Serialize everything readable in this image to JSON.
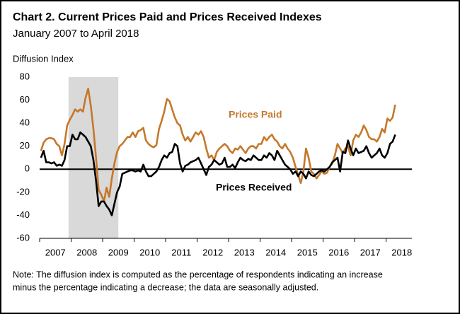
{
  "chart_data": {
    "type": "line",
    "title": "Chart 2. Current Prices Paid and Prices Received Indexes",
    "subtitle": "January 2007 to April 2018",
    "y_label": "Diffusion Index",
    "note": [
      "Note: The diffusion index is computed as the percentage of respondents indicating an increase",
      "minus the percentage indicating a decrease; the data are seasonally adjusted."
    ],
    "x": [
      2007.042,
      2007.125,
      2007.208,
      2007.292,
      2007.375,
      2007.458,
      2007.542,
      2007.625,
      2007.708,
      2007.792,
      2007.875,
      2007.958,
      2008.042,
      2008.125,
      2008.208,
      2008.292,
      2008.375,
      2008.458,
      2008.542,
      2008.625,
      2008.708,
      2008.792,
      2008.875,
      2008.958,
      2009.042,
      2009.125,
      2009.208,
      2009.292,
      2009.375,
      2009.458,
      2009.542,
      2009.625,
      2009.708,
      2009.792,
      2009.875,
      2009.958,
      2010.042,
      2010.125,
      2010.208,
      2010.292,
      2010.375,
      2010.458,
      2010.542,
      2010.625,
      2010.708,
      2010.792,
      2010.875,
      2010.958,
      2011.042,
      2011.125,
      2011.208,
      2011.292,
      2011.375,
      2011.458,
      2011.542,
      2011.625,
      2011.708,
      2011.792,
      2011.875,
      2011.958,
      2012.042,
      2012.125,
      2012.208,
      2012.292,
      2012.375,
      2012.458,
      2012.542,
      2012.625,
      2012.708,
      2012.792,
      2012.875,
      2012.958,
      2013.042,
      2013.125,
      2013.208,
      2013.292,
      2013.375,
      2013.458,
      2013.542,
      2013.625,
      2013.708,
      2013.792,
      2013.875,
      2013.958,
      2014.042,
      2014.125,
      2014.208,
      2014.292,
      2014.375,
      2014.458,
      2014.542,
      2014.625,
      2014.708,
      2014.792,
      2014.875,
      2014.958,
      2015.042,
      2015.125,
      2015.208,
      2015.292,
      2015.375,
      2015.458,
      2015.542,
      2015.625,
      2015.708,
      2015.792,
      2015.875,
      2015.958,
      2016.042,
      2016.125,
      2016.208,
      2016.292,
      2016.375,
      2016.458,
      2016.542,
      2016.625,
      2016.708,
      2016.792,
      2016.875,
      2016.958,
      2017.042,
      2017.125,
      2017.208,
      2017.292,
      2017.375,
      2017.458,
      2017.542,
      2017.625,
      2017.708,
      2017.792,
      2017.875,
      2017.958,
      2018.042,
      2018.125,
      2018.208,
      2018.292
    ],
    "series": [
      {
        "name": "Prices Paid",
        "color": "#c5782a",
        "values": [
          16,
          23,
          26,
          27,
          27,
          26,
          22,
          20,
          12,
          22,
          38,
          43,
          47,
          52,
          50,
          52,
          50,
          62,
          70,
          55,
          35,
          10,
          -18,
          -22,
          -28,
          -16,
          -24,
          -8,
          5,
          15,
          20,
          22,
          25,
          28,
          28,
          32,
          28,
          33,
          34,
          36,
          25,
          22,
          20,
          19,
          21,
          35,
          42,
          50,
          61,
          59,
          52,
          45,
          40,
          38,
          30,
          25,
          28,
          24,
          28,
          32,
          30,
          33,
          28,
          18,
          10,
          12,
          8,
          15,
          18,
          20,
          22,
          20,
          16,
          14,
          18,
          17,
          20,
          17,
          14,
          18,
          20,
          20,
          18,
          22,
          22,
          28,
          25,
          28,
          30,
          26,
          24,
          20,
          18,
          22,
          18,
          15,
          10,
          2,
          -5,
          -12,
          -2,
          18,
          10,
          -2,
          -4,
          -8,
          -5,
          -2,
          -4,
          -3,
          2,
          5,
          12,
          22,
          18,
          14,
          18,
          20,
          12,
          25,
          30,
          28,
          32,
          38,
          34,
          28,
          26,
          26,
          24,
          28,
          35,
          32,
          44,
          42,
          45,
          56
        ]
      },
      {
        "name": "Prices Received",
        "color": "#000000",
        "values": [
          10,
          16,
          6,
          6,
          5,
          6,
          3,
          4,
          3,
          8,
          20,
          20,
          30,
          26,
          26,
          32,
          30,
          28,
          24,
          20,
          8,
          -10,
          -32,
          -28,
          -28,
          -32,
          -35,
          -40,
          -30,
          -20,
          -15,
          -4,
          -3,
          -2,
          -1,
          -1,
          -2,
          -1,
          -2,
          4,
          -2,
          -6,
          -6,
          -4,
          -2,
          2,
          8,
          12,
          10,
          14,
          15,
          22,
          20,
          5,
          -2,
          3,
          4,
          6,
          7,
          8,
          10,
          5,
          0,
          -5,
          2,
          4,
          8,
          6,
          4,
          5,
          10,
          2,
          2,
          4,
          1,
          6,
          10,
          8,
          7,
          9,
          8,
          12,
          10,
          8,
          8,
          12,
          10,
          14,
          12,
          8,
          16,
          12,
          8,
          4,
          2,
          0,
          -4,
          -2,
          -6,
          -2,
          -4,
          -8,
          -2,
          -5,
          -6,
          -4,
          -2,
          -1,
          -2,
          0,
          2,
          6,
          8,
          10,
          -2,
          15,
          14,
          25,
          18,
          12,
          18,
          14,
          15,
          16,
          20,
          14,
          10,
          12,
          14,
          18,
          12,
          10,
          14,
          22,
          24,
          30
        ]
      }
    ],
    "recession": [
      2007.917,
      2009.5
    ],
    "xlim": [
      2007,
      2018.82
    ],
    "xticks": [
      {
        "value": 2007.5,
        "label": "2007"
      },
      {
        "value": 2008.5,
        "label": "2008"
      },
      {
        "value": 2009.5,
        "label": "2009"
      },
      {
        "value": 2010.5,
        "label": "2010"
      },
      {
        "value": 2011.5,
        "label": "2011"
      },
      {
        "value": 2012.5,
        "label": "2012"
      },
      {
        "value": 2013.5,
        "label": "2013"
      },
      {
        "value": 2014.5,
        "label": "2014"
      },
      {
        "value": 2015.5,
        "label": "2015"
      },
      {
        "value": 2016.5,
        "label": "2016"
      },
      {
        "value": 2017.5,
        "label": "2017"
      },
      {
        "value": 2018.5,
        "label": "2018"
      }
    ],
    "ylim": [
      -60,
      80
    ],
    "yticks": [
      -60,
      -40,
      -20,
      0,
      20,
      40,
      60,
      80
    ],
    "zero_line": true,
    "grid": false
  }
}
